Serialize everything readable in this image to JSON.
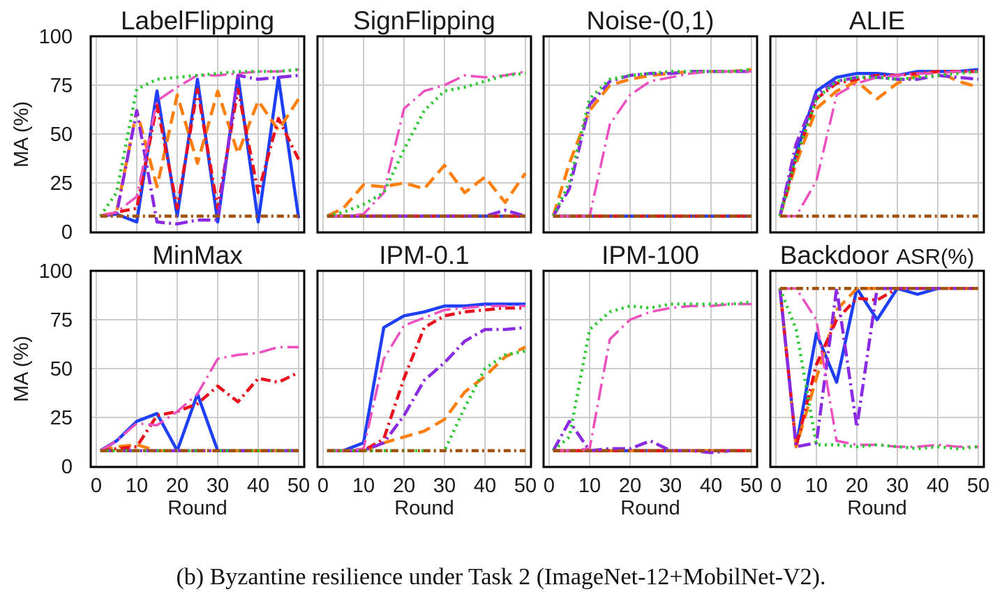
{
  "caption": "(b) Byzantine resilience under Task 2 (ImageNet-12+MobilNet-V2).",
  "axis": {
    "ylabel": "MA (%)",
    "xlabel": "Round",
    "yticks": [
      0,
      25,
      50,
      75,
      100
    ],
    "xticks": [
      0,
      10,
      20,
      30,
      40,
      50
    ]
  },
  "styles": [
    {
      "color": "#1f3ff5",
      "dash": "",
      "width": 4.5
    },
    {
      "color": "#ff7f0e",
      "dash": "18,9",
      "width": 4.5
    },
    {
      "color": "#e8121e",
      "dash": "14,6,3,6",
      "width": 4.5
    },
    {
      "color": "#8a2be2",
      "dash": "18,6,3,6",
      "width": 4.5
    },
    {
      "color": "#ee4fbf",
      "dash": "24,7,3,7",
      "width": 3.5
    },
    {
      "color": "#2ec835",
      "dash": "3,6",
      "width": 4.5
    },
    {
      "color": "#a0520d",
      "dash": "10,5,3,5",
      "width": 4.5
    }
  ],
  "chart_data": [
    {
      "type": "line",
      "title": "LabelFlipping",
      "xlim": [
        0,
        50
      ],
      "ylim": [
        0,
        100
      ],
      "x": [
        1,
        5,
        10,
        15,
        20,
        25,
        30,
        35,
        40,
        45,
        50
      ],
      "series": [
        {
          "style": 0,
          "values": [
            8,
            9,
            5,
            72,
            8,
            78,
            5,
            80,
            5,
            79,
            7
          ]
        },
        {
          "style": 1,
          "values": [
            8,
            10,
            62,
            23,
            70,
            35,
            72,
            40,
            67,
            52,
            68
          ]
        },
        {
          "style": 2,
          "values": [
            8,
            10,
            12,
            65,
            12,
            73,
            12,
            73,
            20,
            58,
            37
          ]
        },
        {
          "style": 3,
          "values": [
            8,
            9,
            62,
            5,
            4,
            6,
            6,
            80,
            78,
            79,
            80
          ]
        },
        {
          "style": 4,
          "values": [
            8,
            10,
            18,
            67,
            74,
            80,
            80,
            81,
            82,
            82,
            83
          ]
        },
        {
          "style": 5,
          "values": [
            8,
            20,
            73,
            78,
            79,
            80,
            81,
            82,
            82,
            82,
            83
          ]
        },
        {
          "style": 6,
          "values": [
            8,
            8,
            8,
            8,
            8,
            8,
            8,
            8,
            8,
            8,
            8
          ]
        }
      ]
    },
    {
      "type": "line",
      "title": "SignFlipping",
      "xlim": [
        0,
        50
      ],
      "ylim": [
        0,
        100
      ],
      "x": [
        1,
        5,
        10,
        15,
        20,
        25,
        30,
        35,
        40,
        45,
        50
      ],
      "series": [
        {
          "style": 0,
          "values": [
            8,
            8,
            8,
            8,
            8,
            8,
            8,
            8,
            8,
            8,
            8
          ]
        },
        {
          "style": 1,
          "values": [
            8,
            12,
            24,
            23,
            25,
            22,
            34,
            20,
            28,
            15,
            30
          ]
        },
        {
          "style": 2,
          "values": [
            8,
            8,
            8,
            8,
            8,
            8,
            8,
            8,
            8,
            8,
            8
          ]
        },
        {
          "style": 3,
          "values": [
            8,
            8,
            8,
            8,
            8,
            8,
            8,
            8,
            8,
            11,
            8
          ]
        },
        {
          "style": 4,
          "values": [
            8,
            8,
            9,
            20,
            63,
            72,
            75,
            80,
            79,
            80,
            82
          ]
        },
        {
          "style": 5,
          "values": [
            8,
            10,
            14,
            20,
            42,
            62,
            72,
            74,
            77,
            80,
            81
          ]
        },
        {
          "style": 6,
          "values": [
            8,
            8,
            8,
            8,
            8,
            8,
            8,
            8,
            8,
            8,
            8
          ]
        }
      ]
    },
    {
      "type": "line",
      "title": "Noise-(0,1)",
      "xlim": [
        0,
        50
      ],
      "ylim": [
        0,
        100
      ],
      "x": [
        1,
        5,
        10,
        15,
        20,
        25,
        30,
        35,
        40,
        45,
        50
      ],
      "series": [
        {
          "style": 0,
          "values": [
            8,
            8,
            8,
            8,
            8,
            8,
            8,
            8,
            8,
            8,
            8
          ]
        },
        {
          "style": 1,
          "values": [
            8,
            35,
            62,
            75,
            78,
            80,
            81,
            82,
            82,
            82,
            83
          ]
        },
        {
          "style": 2,
          "values": [
            8,
            8,
            8,
            8,
            8,
            8,
            8,
            8,
            8,
            8,
            8
          ]
        },
        {
          "style": 3,
          "values": [
            8,
            22,
            65,
            77,
            80,
            81,
            81,
            82,
            82,
            82,
            82
          ]
        },
        {
          "style": 4,
          "values": [
            8,
            8,
            8,
            55,
            70,
            77,
            79,
            81,
            82,
            82,
            82
          ]
        },
        {
          "style": 5,
          "values": [
            8,
            25,
            68,
            78,
            80,
            81,
            82,
            82,
            82,
            82,
            83
          ]
        },
        {
          "style": 6,
          "values": [
            8,
            8,
            8,
            8,
            8,
            8,
            8,
            8,
            8,
            8,
            8
          ]
        }
      ]
    },
    {
      "type": "line",
      "title": "ALIE",
      "xlim": [
        0,
        50
      ],
      "ylim": [
        0,
        100
      ],
      "x": [
        1,
        5,
        10,
        15,
        20,
        25,
        30,
        35,
        40,
        45,
        50
      ],
      "series": [
        {
          "style": 0,
          "values": [
            8,
            40,
            72,
            79,
            81,
            81,
            80,
            82,
            82,
            82,
            83
          ]
        },
        {
          "style": 1,
          "values": [
            8,
            35,
            63,
            72,
            77,
            68,
            76,
            80,
            82,
            77,
            74
          ]
        },
        {
          "style": 2,
          "values": [
            8,
            38,
            68,
            76,
            78,
            80,
            80,
            81,
            82,
            82,
            82
          ]
        },
        {
          "style": 3,
          "values": [
            8,
            45,
            70,
            77,
            79,
            79,
            78,
            78,
            80,
            79,
            78
          ]
        },
        {
          "style": 4,
          "values": [
            8,
            8,
            26,
            70,
            76,
            79,
            80,
            81,
            81,
            82,
            82
          ]
        },
        {
          "style": 5,
          "values": [
            8,
            38,
            68,
            77,
            79,
            79,
            78,
            79,
            80,
            81,
            82
          ]
        },
        {
          "style": 6,
          "values": [
            8,
            8,
            8,
            8,
            8,
            8,
            8,
            8,
            8,
            8,
            8
          ]
        }
      ]
    },
    {
      "type": "line",
      "title": "MinMax",
      "xlim": [
        0,
        50
      ],
      "ylim": [
        0,
        100
      ],
      "x": [
        1,
        5,
        10,
        15,
        20,
        25,
        30,
        35,
        40,
        45,
        50
      ],
      "series": [
        {
          "style": 0,
          "values": [
            8,
            13,
            23,
            27,
            8,
            37,
            8,
            8,
            8,
            8,
            8
          ]
        },
        {
          "style": 1,
          "values": [
            8,
            10,
            11,
            8,
            8,
            8,
            8,
            8,
            8,
            8,
            8
          ]
        },
        {
          "style": 2,
          "values": [
            8,
            9,
            10,
            26,
            28,
            32,
            41,
            33,
            45,
            43,
            48
          ]
        },
        {
          "style": 3,
          "values": [
            8,
            8,
            8,
            8,
            8,
            8,
            8,
            8,
            8,
            8,
            8
          ]
        },
        {
          "style": 4,
          "values": [
            8,
            13,
            22,
            21,
            28,
            37,
            55,
            57,
            58,
            61,
            61
          ]
        },
        {
          "style": 5,
          "values": [
            8,
            8,
            8,
            8,
            8,
            8,
            8,
            8,
            8,
            8,
            8
          ]
        },
        {
          "style": 6,
          "values": [
            8,
            8,
            8,
            8,
            8,
            8,
            8,
            8,
            8,
            8,
            8
          ]
        }
      ]
    },
    {
      "type": "line",
      "title": "IPM-0.1",
      "xlim": [
        0,
        50
      ],
      "ylim": [
        0,
        100
      ],
      "x": [
        1,
        5,
        10,
        15,
        20,
        25,
        30,
        35,
        40,
        45,
        50
      ],
      "series": [
        {
          "style": 0,
          "values": [
            8,
            8,
            12,
            71,
            77,
            79,
            82,
            82,
            83,
            83,
            83
          ]
        },
        {
          "style": 1,
          "values": [
            8,
            8,
            8,
            12,
            15,
            18,
            24,
            38,
            46,
            56,
            61
          ]
        },
        {
          "style": 2,
          "values": [
            8,
            8,
            8,
            14,
            45,
            71,
            77,
            79,
            80,
            81,
            81
          ]
        },
        {
          "style": 3,
          "values": [
            8,
            8,
            8,
            12,
            26,
            44,
            53,
            64,
            70,
            70,
            71
          ]
        },
        {
          "style": 4,
          "values": [
            8,
            8,
            9,
            55,
            72,
            76,
            80,
            81,
            82,
            82,
            82
          ]
        },
        {
          "style": 5,
          "values": [
            8,
            8,
            8,
            8,
            8,
            8,
            8,
            30,
            50,
            57,
            59
          ]
        },
        {
          "style": 6,
          "values": [
            8,
            8,
            8,
            8,
            8,
            8,
            8,
            8,
            8,
            8,
            8
          ]
        }
      ]
    },
    {
      "type": "line",
      "title": "IPM-100",
      "xlim": [
        0,
        50
      ],
      "ylim": [
        0,
        100
      ],
      "x": [
        1,
        5,
        10,
        15,
        20,
        25,
        30,
        35,
        40,
        45,
        50
      ],
      "series": [
        {
          "style": 0,
          "values": [
            8,
            8,
            8,
            8,
            8,
            8,
            8,
            8,
            8,
            8,
            8
          ]
        },
        {
          "style": 1,
          "values": [
            8,
            8,
            8,
            8,
            8,
            8,
            8,
            8,
            8,
            8,
            8
          ]
        },
        {
          "style": 2,
          "values": [
            8,
            8,
            8,
            8,
            8,
            8,
            8,
            8,
            8,
            8,
            8
          ]
        },
        {
          "style": 3,
          "values": [
            8,
            23,
            8,
            9,
            9,
            13,
            8,
            8,
            7,
            8,
            8
          ]
        },
        {
          "style": 4,
          "values": [
            8,
            8,
            9,
            65,
            75,
            79,
            81,
            82,
            82,
            83,
            83
          ]
        },
        {
          "style": 5,
          "values": [
            8,
            15,
            70,
            79,
            82,
            81,
            83,
            83,
            83,
            83,
            84
          ]
        },
        {
          "style": 6,
          "values": [
            8,
            8,
            8,
            8,
            8,
            8,
            8,
            8,
            8,
            8,
            8
          ]
        }
      ]
    },
    {
      "type": "line",
      "title": "Backdoor",
      "title_suffix": "ASR(%)",
      "xlim": [
        0,
        50
      ],
      "ylim": [
        0,
        100
      ],
      "x": [
        1,
        5,
        10,
        15,
        20,
        25,
        30,
        35,
        40,
        45,
        50
      ],
      "series": [
        {
          "style": 0,
          "values": [
            91,
            10,
            68,
            43,
            91,
            75,
            91,
            88,
            91,
            91,
            91
          ]
        },
        {
          "style": 1,
          "values": [
            91,
            10,
            45,
            80,
            91,
            91,
            91,
            91,
            91,
            91,
            91
          ]
        },
        {
          "style": 2,
          "values": [
            91,
            10,
            52,
            75,
            86,
            85,
            91,
            91,
            91,
            91,
            91
          ]
        },
        {
          "style": 3,
          "values": [
            91,
            10,
            12,
            91,
            20,
            91,
            91,
            91,
            91,
            91,
            91
          ]
        },
        {
          "style": 4,
          "values": [
            91,
            91,
            75,
            13,
            11,
            11,
            10,
            10,
            11,
            10,
            10
          ]
        },
        {
          "style": 5,
          "values": [
            91,
            70,
            11,
            11,
            10,
            11,
            10,
            9,
            10,
            9,
            10
          ]
        },
        {
          "style": 6,
          "values": [
            91,
            91,
            91,
            91,
            91,
            91,
            91,
            91,
            91,
            91,
            91
          ]
        }
      ]
    }
  ]
}
